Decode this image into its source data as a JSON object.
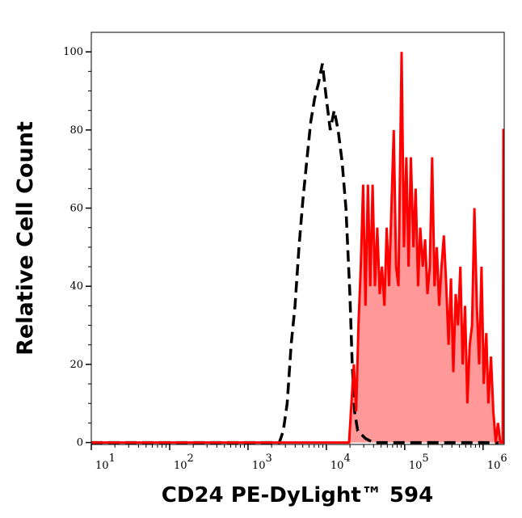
{
  "chart_data": {
    "type": "area",
    "title": "",
    "xlabel": "CD24 PE-DyLight™ 594",
    "ylabel": "Relative Cell Count",
    "x_scale": "log",
    "xlim": [
      10,
      1862000
    ],
    "ylim": [
      -0.5,
      105
    ],
    "x_ticks": [
      {
        "value": 10,
        "base": "10",
        "exp": "1"
      },
      {
        "value": 100,
        "base": "10",
        "exp": "2"
      },
      {
        "value": 1000,
        "base": "10",
        "exp": "3"
      },
      {
        "value": 10000,
        "base": "10",
        "exp": "4"
      },
      {
        "value": 100000,
        "base": "10",
        "exp": "5"
      },
      {
        "value": 1000000,
        "base": "10",
        "exp": "6"
      }
    ],
    "y_ticks": [
      "0",
      "20",
      "40",
      "60",
      "80",
      "100"
    ],
    "grid": false,
    "legend": "none",
    "series": [
      {
        "style": "dashed",
        "color": "#000000",
        "filled": false,
        "x": [
          10,
          2512,
          2818,
          3162,
          3548,
          3981,
          4467,
          5012,
          5623,
          6310,
          7079,
          7943,
          8913,
          10000,
          11220,
          12589,
          14125,
          15849,
          17783,
          19953,
          21380,
          22909,
          25119,
          31623,
          39811,
          1585000
        ],
        "y": [
          0,
          0,
          3,
          10,
          25,
          35,
          50,
          62,
          72,
          82,
          88,
          92,
          97,
          88,
          80,
          85,
          80,
          72,
          60,
          38,
          20,
          8,
          3,
          1,
          0,
          0
        ]
      },
      {
        "style": "solid",
        "color": "#ff0000",
        "fill": "#ff9999",
        "filled": true,
        "x": [
          10,
          19500,
          20900,
          22400,
          24000,
          25700,
          27500,
          29500,
          31600,
          33900,
          36300,
          38900,
          41700,
          44700,
          47900,
          51300,
          55000,
          58900,
          63100,
          67600,
          72400,
          77600,
          83200,
          91200,
          97700,
          105000,
          112000,
          120000,
          129000,
          138000,
          148000,
          158000,
          170000,
          182000,
          195000,
          209000,
          224000,
          240000,
          257000,
          275000,
          295000,
          316000,
          339000,
          363000,
          389000,
          417000,
          447000,
          479000,
          513000,
          550000,
          589000,
          631000,
          676000,
          724000,
          776000,
          832000,
          891000,
          955000,
          1020000,
          1100000,
          1170000,
          1260000,
          1350000,
          1450000,
          1550000,
          1660000,
          1780000,
          1820000,
          1860000
        ],
        "y": [
          0,
          0,
          10,
          20,
          8,
          30,
          45,
          66,
          35,
          66,
          40,
          66,
          40,
          55,
          38,
          45,
          35,
          55,
          40,
          60,
          80,
          45,
          40,
          100,
          50,
          73,
          45,
          73,
          50,
          65,
          40,
          55,
          45,
          52,
          38,
          45,
          73,
          40,
          50,
          35,
          45,
          53,
          40,
          25,
          42,
          18,
          38,
          30,
          45,
          20,
          35,
          10,
          25,
          30,
          60,
          35,
          20,
          45,
          15,
          28,
          10,
          22,
          8,
          0,
          5,
          0,
          0,
          80,
          80
        ]
      }
    ]
  }
}
